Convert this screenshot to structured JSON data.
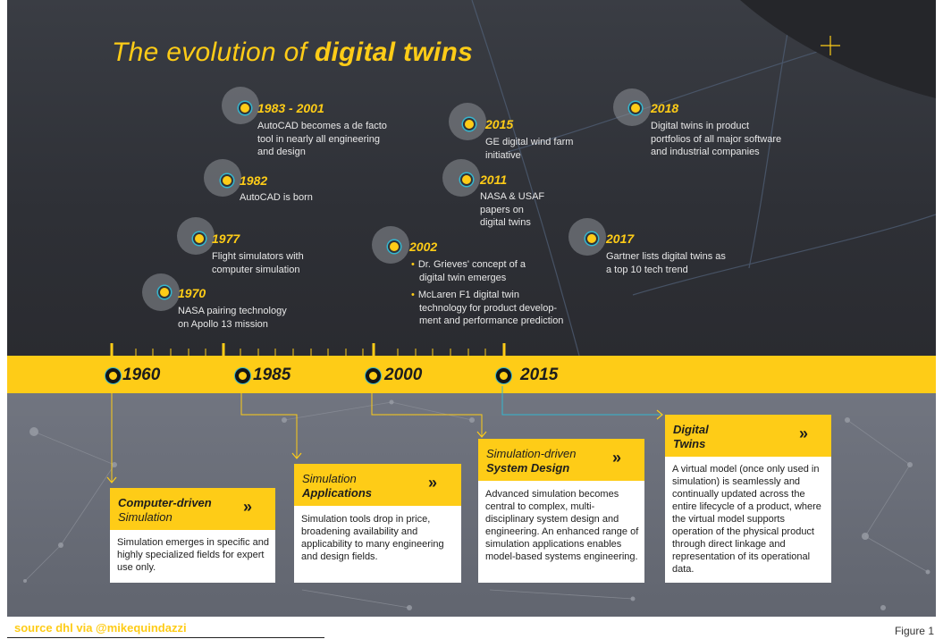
{
  "title": {
    "regular": "The evolution of ",
    "bold": "digital twins"
  },
  "milestones": [
    {
      "year": "1983 - 2001",
      "lines": [
        "AutoCAD becomes a de facto",
        "tool in nearly all engineering",
        "and design"
      ]
    },
    {
      "year": "1982",
      "lines": [
        "AutoCAD is born"
      ]
    },
    {
      "year": "1977",
      "lines": [
        "Flight simulators with",
        "computer simulation"
      ]
    },
    {
      "year": "1970",
      "lines": [
        "NASA pairing technology",
        "on  Apollo 13 mission"
      ]
    },
    {
      "year": "2015",
      "lines": [
        "GE digital wind farm",
        "initiative"
      ]
    },
    {
      "year": "2011",
      "lines": [
        "NASA & USAF",
        "papers on",
        "digital twins"
      ]
    },
    {
      "year": "2002",
      "bullets": [
        [
          "Dr. Grieves' concept of a",
          "digital twin emerges"
        ],
        [
          "McLaren F1 digital twin",
          "technology  for product develop-",
          "ment and performance prediction"
        ]
      ]
    },
    {
      "year": "2018",
      "lines": [
        "Digital twins in product",
        "portfolios of all major software",
        "and industrial companies"
      ]
    },
    {
      "year": "2017",
      "lines": [
        "Gartner lists digital twins as",
        "a top 10 tech trend"
      ]
    }
  ],
  "eras": [
    "1960",
    "1985",
    "2000",
    "2015"
  ],
  "cards": [
    {
      "line1": "Computer-driven",
      "line2": "Simulation",
      "body": "Simulation emerges in specific and highly specialized fields for expert use only."
    },
    {
      "line1": "Simulation",
      "line2": "Applications",
      "body": "Simulation tools drop in price, broadening availability and applicability to many engineering and design fields."
    },
    {
      "line1": "Simulation-driven",
      "line2": "System Design",
      "body": "Advanced simulation becomes central to complex, multi-disciplinary system design and engineering. An enhanced range of simulation applications enables model-based systems engineering."
    },
    {
      "line1": "Digital",
      "line2": "Twins",
      "body": "A virtual model (once only used in simulation) is seamlessly and continually updated across the entire lifecycle of a product, where the virtual model supports operation of the physical product through direct linkage and representation of its operational data."
    }
  ],
  "chevron": "»",
  "source": "source dhl via @mikequindazzi",
  "figure_label": "Figure 1",
  "colors": {
    "accent": "#fecc17",
    "dark": "#2e3036",
    "ring": "#34b6cf",
    "lower": "#686c76"
  }
}
